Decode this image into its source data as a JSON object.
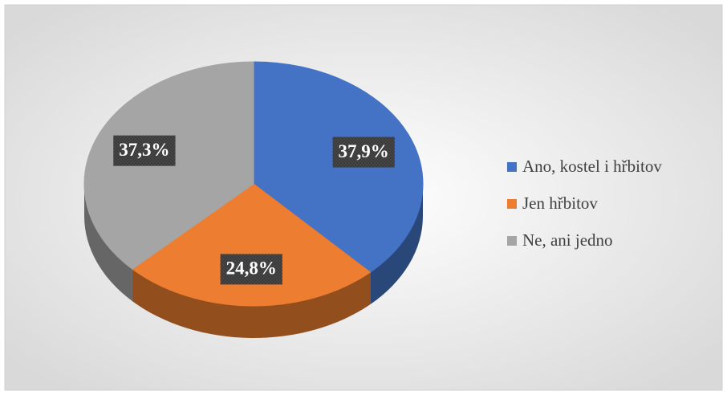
{
  "chart_data": {
    "type": "pie",
    "categories": [
      "Ano, kostel i hřbitov",
      "Jen hřbitov",
      "Ne, ani jedno"
    ],
    "values": [
      37.9,
      24.8,
      37.3
    ],
    "value_labels": [
      "37,9%",
      "24,8%",
      "37,3%"
    ],
    "colors": [
      "#4472c4",
      "#ed7d31",
      "#a5a5a5"
    ],
    "legend": "right"
  }
}
